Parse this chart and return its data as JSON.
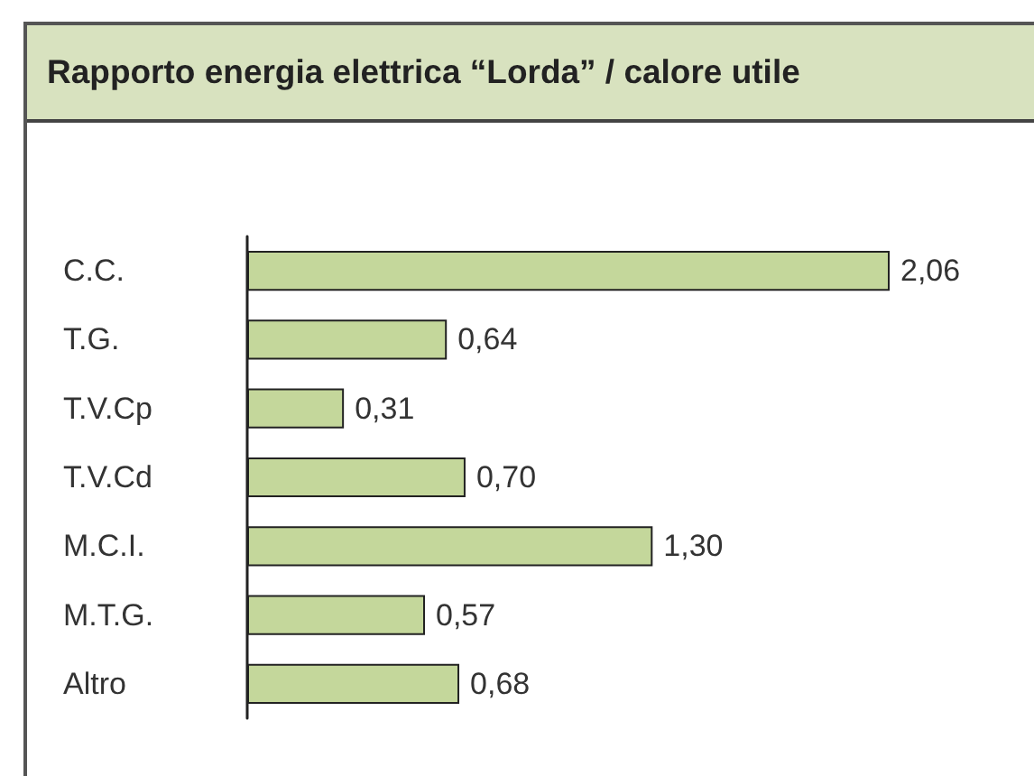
{
  "chart_data": {
    "type": "bar",
    "orientation": "horizontal",
    "title": "Rapporto energia elettrica “Lorda” / calore utile",
    "categories": [
      "C.C.",
      "T.G.",
      "T.V.Cp",
      "T.V.Cd",
      "M.C.I.",
      "M.T.G.",
      "Altro"
    ],
    "values": [
      2.06,
      0.64,
      0.31,
      0.7,
      1.3,
      0.57,
      0.68
    ],
    "value_labels": [
      "2,06",
      "0,64",
      "0,31",
      "0,70",
      "1,30",
      "0,57",
      "0,68"
    ],
    "color": "#c4d79b"
  }
}
